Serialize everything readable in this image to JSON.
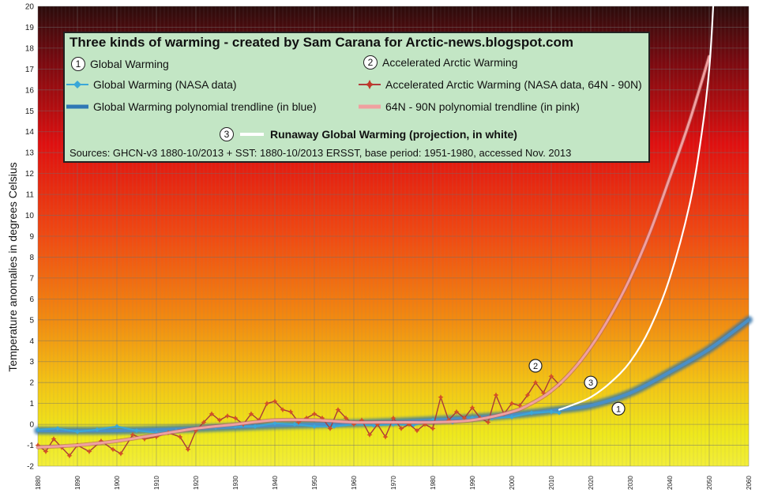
{
  "chart_data": {
    "type": "line",
    "title": "Three kinds of warming - created by Sam Carana for Arctic-news.blogspot.com",
    "xlabel": "",
    "ylabel": "Temperature anomalies in degrees Celsius",
    "xlim": [
      1880,
      2060
    ],
    "ylim": [
      -2,
      20
    ],
    "x_ticks": [
      "1880",
      "1890",
      "1900",
      "1910",
      "1920",
      "1930",
      "1940",
      "1950",
      "1960",
      "1970",
      "1980",
      "1990",
      "2000",
      "2010",
      "2020",
      "2030",
      "2040",
      "2050",
      "2060"
    ],
    "y_ticks": [
      "-2",
      "-1",
      "0",
      "1",
      "2",
      "3",
      "4",
      "5",
      "6",
      "7",
      "8",
      "9",
      "10",
      "11",
      "12",
      "13",
      "14",
      "15",
      "16",
      "17",
      "18",
      "19",
      "20"
    ],
    "sources": "Sources:  GHCN-v3 1880-10/2013 + SST: 1880-10/2013 ERSST,  base period: 1951-1980,  accessed Nov. 2013",
    "series": [
      {
        "name": "Global Warming (NASA data)",
        "color": "#3aa7d8",
        "x": [
          1880,
          1885,
          1890,
          1895,
          1900,
          1905,
          1910,
          1915,
          1920,
          1925,
          1930,
          1935,
          1940,
          1945,
          1950,
          1955,
          1960,
          1965,
          1970,
          1975,
          1980,
          1985,
          1990,
          1995,
          2000,
          2005,
          2010,
          2012
        ],
        "y": [
          -0.25,
          -0.2,
          -0.35,
          -0.25,
          -0.1,
          -0.3,
          -0.4,
          -0.3,
          -0.25,
          -0.15,
          -0.1,
          -0.1,
          0.05,
          0.0,
          -0.1,
          -0.1,
          0.0,
          -0.05,
          0.0,
          -0.05,
          0.2,
          0.1,
          0.3,
          0.3,
          0.35,
          0.55,
          0.6,
          0.55
        ]
      },
      {
        "name": "Global Warming polynomial trendline (in blue)",
        "color": "#2f78b5",
        "x": [
          1880,
          1900,
          1920,
          1940,
          1960,
          1980,
          2000,
          2012,
          2020,
          2030,
          2040,
          2050,
          2060
        ],
        "y": [
          -0.3,
          -0.3,
          -0.2,
          -0.05,
          0.05,
          0.2,
          0.45,
          0.7,
          0.9,
          1.5,
          2.5,
          3.6,
          5.0
        ]
      },
      {
        "name": "Accelerated Arctic Warming (NASA data, 64N - 90N)",
        "color": "#c0392b",
        "x": [
          1880,
          1882,
          1884,
          1886,
          1888,
          1890,
          1893,
          1896,
          1899,
          1901,
          1904,
          1907,
          1910,
          1913,
          1916,
          1918,
          1920,
          1922,
          1924,
          1926,
          1928,
          1930,
          1932,
          1934,
          1936,
          1938,
          1940,
          1942,
          1944,
          1946,
          1948,
          1950,
          1952,
          1954,
          1956,
          1958,
          1960,
          1962,
          1964,
          1966,
          1968,
          1970,
          1972,
          1974,
          1976,
          1978,
          1980,
          1982,
          1984,
          1986,
          1988,
          1990,
          1992,
          1994,
          1996,
          1998,
          2000,
          2002,
          2004,
          2006,
          2008,
          2010,
          2012
        ],
        "y": [
          -1.0,
          -1.3,
          -0.7,
          -1.1,
          -1.5,
          -1.0,
          -1.3,
          -0.8,
          -1.2,
          -1.4,
          -0.5,
          -0.7,
          -0.6,
          -0.4,
          -0.6,
          -1.2,
          -0.3,
          0.1,
          0.5,
          0.2,
          0.4,
          0.3,
          0.0,
          0.5,
          0.2,
          1.0,
          1.1,
          0.7,
          0.6,
          0.1,
          0.3,
          0.5,
          0.3,
          -0.2,
          0.7,
          0.3,
          0.0,
          0.2,
          -0.5,
          0.0,
          -0.6,
          0.3,
          -0.2,
          0.0,
          -0.3,
          0.0,
          -0.2,
          1.3,
          0.2,
          0.6,
          0.3,
          0.8,
          0.3,
          0.1,
          1.4,
          0.5,
          1.0,
          0.9,
          1.4,
          2.0,
          1.5,
          2.3,
          1.9
        ]
      },
      {
        "name": "64N - 90N polynomial trendline (in pink)",
        "color": "#f0a0a0",
        "x": [
          1880,
          1890,
          1900,
          1910,
          1920,
          1930,
          1940,
          1950,
          1960,
          1970,
          1980,
          1990,
          2000,
          2005,
          2010,
          2015,
          2020,
          2025,
          2030,
          2035,
          2040,
          2045,
          2050
        ],
        "y": [
          -1.1,
          -1.0,
          -0.8,
          -0.5,
          -0.2,
          0.0,
          0.2,
          0.2,
          0.1,
          0.1,
          0.1,
          0.2,
          0.6,
          1.0,
          1.6,
          2.5,
          3.7,
          5.2,
          7.0,
          9.2,
          11.8,
          14.5,
          17.6
        ]
      },
      {
        "name": "Runaway Global Warming (projection, in white)",
        "color": "#ffffff",
        "x": [
          2012,
          2015,
          2020,
          2025,
          2030,
          2035,
          2040,
          2045,
          2048,
          2050,
          2051
        ],
        "y": [
          0.7,
          0.9,
          1.3,
          2.0,
          3.0,
          4.6,
          7.0,
          10.5,
          13.8,
          17.0,
          20.0
        ]
      }
    ],
    "annotations": [
      {
        "label": "2",
        "x": 2006,
        "y": 2.8
      },
      {
        "label": "3",
        "x": 2020,
        "y": 2.0
      },
      {
        "label": "1",
        "x": 2027,
        "y": 0.75
      }
    ]
  },
  "legend": {
    "title": "Three kinds of warming - created by Sam Carana for Arctic-news.blogspot.com",
    "n1": "1",
    "n2": "2",
    "n3": "3",
    "global_warming": "Global Warming",
    "global_nasa": "Global Warming (NASA data)",
    "global_trend": "Global Warming polynomial trendline (in blue)",
    "arctic": "Accelerated Arctic Warming",
    "arctic_nasa": "Accelerated Arctic Warming (NASA data, 64N - 90N)",
    "arctic_trend": "64N - 90N polynomial trendline (in pink)",
    "runaway": "Runaway Global Warming (projection, in white)"
  }
}
